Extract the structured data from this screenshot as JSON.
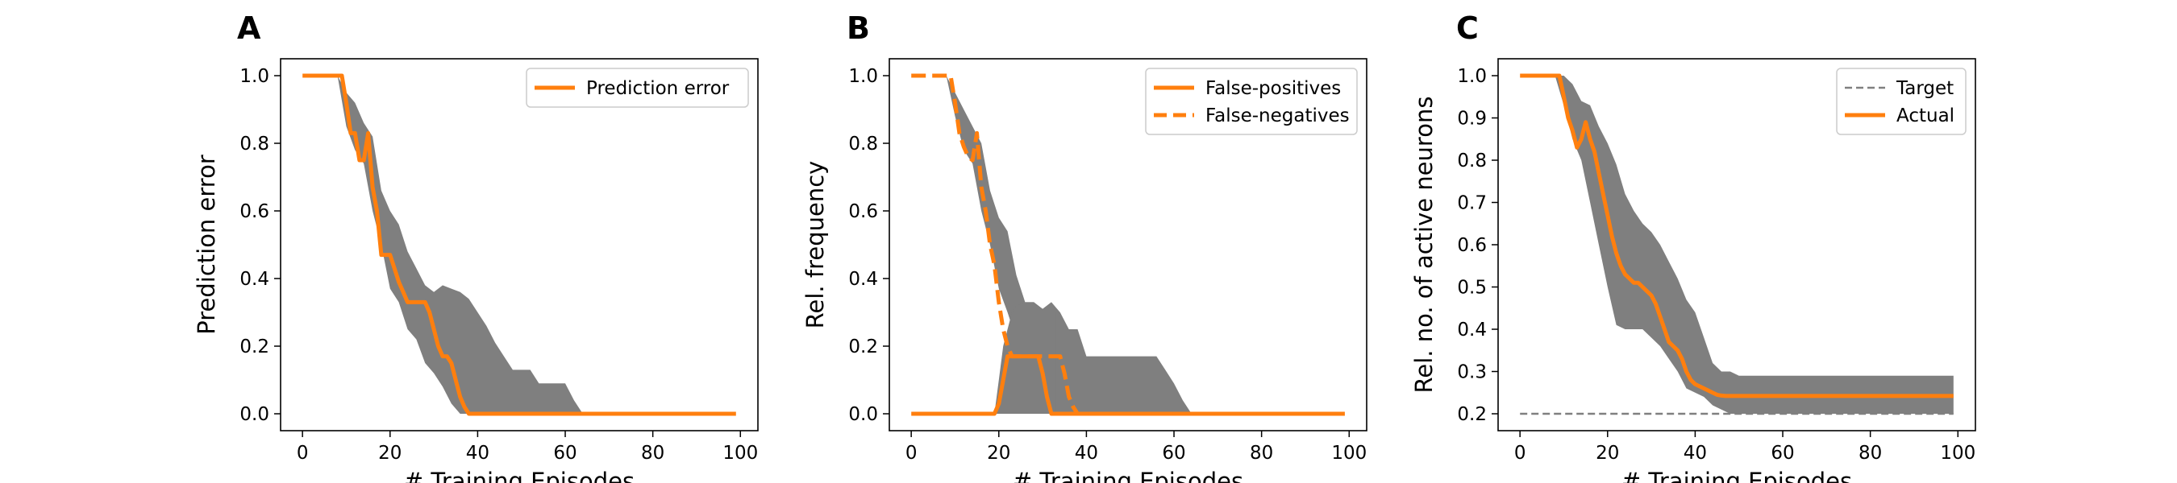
{
  "colors": {
    "actual": "#ff7f0e",
    "band": "#7f7f7f",
    "target": "#808080",
    "axes": "#000000"
  },
  "chart_data": [
    {
      "panel": "A",
      "type": "line",
      "title": "",
      "xlabel": "# Training Episodes",
      "ylabel": "Prediction error",
      "xlim": [
        -5,
        104
      ],
      "ylim": [
        -0.05,
        1.05
      ],
      "xticks": [
        0,
        20,
        40,
        60,
        80,
        100
      ],
      "yticks": [
        "0.0",
        "0.2",
        "0.4",
        "0.6",
        "0.8",
        "1.0"
      ],
      "grid": false,
      "legend_position": "top-right",
      "series": [
        {
          "name": "Prediction error",
          "style": "solid",
          "x": [
            0,
            8,
            9,
            10,
            11,
            12,
            13,
            14,
            15,
            16,
            17,
            18,
            19,
            20,
            21,
            22,
            23,
            24,
            25,
            26,
            27,
            28,
            29,
            30,
            31,
            32,
            33,
            34,
            35,
            36,
            37,
            38,
            39,
            40,
            50,
            60,
            70,
            80,
            90,
            99
          ],
          "y": [
            1.0,
            1.0,
            1.0,
            0.92,
            0.83,
            0.83,
            0.75,
            0.75,
            0.83,
            0.67,
            0.6,
            0.47,
            0.47,
            0.47,
            0.43,
            0.39,
            0.36,
            0.33,
            0.33,
            0.33,
            0.33,
            0.33,
            0.3,
            0.25,
            0.2,
            0.17,
            0.17,
            0.15,
            0.1,
            0.05,
            0.02,
            0.0,
            0.0,
            0.0,
            0.0,
            0.0,
            0.0,
            0.0,
            0.0,
            0.0
          ]
        }
      ],
      "bands": [
        {
          "x": [
            0,
            8,
            10,
            12,
            14,
            16,
            18,
            20,
            22,
            24,
            26,
            28,
            30,
            32,
            34,
            36,
            38,
            40,
            42,
            44,
            46,
            48,
            50,
            52,
            54,
            56,
            58,
            60,
            62,
            64,
            70,
            80,
            90,
            99
          ],
          "lower": [
            1.0,
            1.0,
            0.85,
            0.78,
            0.74,
            0.6,
            0.5,
            0.37,
            0.33,
            0.25,
            0.22,
            0.15,
            0.12,
            0.08,
            0.03,
            0.0,
            0.0,
            0.0,
            0.0,
            0.0,
            0.0,
            0.0,
            0.0,
            0.0,
            0.0,
            0.0,
            0.0,
            0.0,
            0.0,
            0.0,
            0.0,
            0.0,
            0.0,
            0.0
          ],
          "upper": [
            1.0,
            1.0,
            0.95,
            0.92,
            0.86,
            0.82,
            0.66,
            0.6,
            0.56,
            0.48,
            0.43,
            0.38,
            0.36,
            0.38,
            0.37,
            0.36,
            0.34,
            0.3,
            0.26,
            0.21,
            0.17,
            0.13,
            0.13,
            0.13,
            0.09,
            0.09,
            0.09,
            0.09,
            0.04,
            0.0,
            0.0,
            0.0,
            0.0,
            0.0
          ]
        }
      ]
    },
    {
      "panel": "B",
      "type": "line",
      "title": "",
      "xlabel": "# Training Episodes",
      "ylabel": "Rel. frequency",
      "xlim": [
        -5,
        104
      ],
      "ylim": [
        -0.05,
        1.05
      ],
      "xticks": [
        0,
        20,
        40,
        60,
        80,
        100
      ],
      "yticks": [
        "0.0",
        "0.2",
        "0.4",
        "0.6",
        "0.8",
        "1.0"
      ],
      "grid": false,
      "legend_position": "top-right",
      "series": [
        {
          "name": "False-positives",
          "style": "solid",
          "x": [
            0,
            19,
            20,
            21,
            22,
            23,
            24,
            25,
            26,
            27,
            28,
            29,
            30,
            31,
            32,
            33,
            40,
            50,
            60,
            70,
            80,
            90,
            99
          ],
          "y": [
            0.0,
            0.0,
            0.03,
            0.1,
            0.17,
            0.17,
            0.17,
            0.17,
            0.17,
            0.17,
            0.17,
            0.17,
            0.12,
            0.05,
            0.0,
            0.0,
            0.0,
            0.0,
            0.0,
            0.0,
            0.0,
            0.0,
            0.0
          ]
        },
        {
          "name": "False-negatives",
          "style": "dashed",
          "x": [
            0,
            8,
            9,
            10,
            11,
            12,
            13,
            14,
            15,
            16,
            17,
            18,
            19,
            20,
            21,
            22,
            23,
            24,
            25,
            26,
            27,
            28,
            29,
            30,
            31,
            32,
            33,
            34,
            35,
            36,
            37,
            38,
            40,
            50,
            60,
            70,
            80,
            90,
            99
          ],
          "y": [
            1.0,
            1.0,
            1.0,
            0.92,
            0.83,
            0.79,
            0.76,
            0.75,
            0.83,
            0.67,
            0.6,
            0.5,
            0.44,
            0.33,
            0.25,
            0.2,
            0.17,
            0.17,
            0.17,
            0.17,
            0.17,
            0.17,
            0.17,
            0.17,
            0.17,
            0.17,
            0.17,
            0.17,
            0.12,
            0.05,
            0.02,
            0.0,
            0.0,
            0.0,
            0.0,
            0.0,
            0.0,
            0.0,
            0.0
          ]
        }
      ],
      "bands": [
        {
          "x": [
            0,
            8,
            10,
            12,
            14,
            16,
            18,
            20,
            22,
            24,
            26,
            28,
            30,
            32,
            34,
            36,
            38,
            40,
            42,
            44,
            46,
            48,
            50,
            52,
            54,
            56,
            58,
            60,
            62,
            64,
            70,
            80,
            90,
            99
          ],
          "lower": [
            1.0,
            1.0,
            0.88,
            0.78,
            0.74,
            0.6,
            0.5,
            0.37,
            0.3,
            0.22,
            0.17,
            0.08,
            0.03,
            0.0,
            0.0,
            0.0,
            0.0,
            0.0,
            0.0,
            0.0,
            0.0,
            0.0,
            0.0,
            0.0,
            0.0,
            0.0,
            0.0,
            0.0,
            0.0,
            0.0,
            0.0,
            0.0,
            0.0,
            0.0
          ],
          "upper": [
            1.0,
            1.0,
            0.95,
            0.9,
            0.85,
            0.8,
            0.66,
            0.58,
            0.54,
            0.41,
            0.33,
            0.33,
            0.31,
            0.33,
            0.3,
            0.25,
            0.25,
            0.17,
            0.17,
            0.17,
            0.17,
            0.17,
            0.17,
            0.17,
            0.17,
            0.17,
            0.13,
            0.09,
            0.04,
            0.0,
            0.0,
            0.0,
            0.0,
            0.0
          ]
        },
        {
          "x": [
            19,
            20,
            21,
            22,
            23,
            24,
            26,
            28,
            30,
            32,
            33
          ],
          "lower": [
            0.0,
            0.0,
            0.0,
            0.0,
            0.0,
            0.0,
            0.0,
            0.0,
            0.0,
            0.0,
            0.0
          ],
          "upper": [
            0.0,
            0.1,
            0.2,
            0.25,
            0.3,
            0.32,
            0.33,
            0.33,
            0.31,
            0.33,
            0.3
          ]
        }
      ]
    },
    {
      "panel": "C",
      "type": "line",
      "title": "",
      "xlabel": "# Training Episodes",
      "ylabel": "Rel. no. of active neurons",
      "xlim": [
        -5,
        104
      ],
      "ylim": [
        0.16,
        1.04
      ],
      "xticks": [
        0,
        20,
        40,
        60,
        80,
        100
      ],
      "yticks": [
        "0.2",
        "0.3",
        "0.4",
        "0.5",
        "0.6",
        "0.7",
        "0.8",
        "0.9",
        "1.0"
      ],
      "grid": false,
      "legend_position": "top-right",
      "series": [
        {
          "name": "Target",
          "style": "dashed-thin",
          "x": [
            0,
            99
          ],
          "y": [
            0.2,
            0.2
          ]
        },
        {
          "name": "Actual",
          "style": "solid",
          "x": [
            0,
            8,
            9,
            10,
            11,
            12,
            13,
            14,
            15,
            16,
            17,
            18,
            19,
            20,
            21,
            22,
            23,
            24,
            25,
            26,
            27,
            28,
            29,
            30,
            31,
            32,
            33,
            34,
            35,
            36,
            37,
            38,
            39,
            40,
            41,
            42,
            43,
            44,
            45,
            46,
            47,
            48,
            50,
            60,
            70,
            80,
            90,
            99
          ],
          "y": [
            1.0,
            1.0,
            1.0,
            0.95,
            0.9,
            0.87,
            0.83,
            0.85,
            0.89,
            0.85,
            0.82,
            0.77,
            0.72,
            0.67,
            0.62,
            0.58,
            0.55,
            0.53,
            0.52,
            0.51,
            0.51,
            0.5,
            0.49,
            0.48,
            0.46,
            0.43,
            0.4,
            0.37,
            0.36,
            0.35,
            0.33,
            0.3,
            0.28,
            0.27,
            0.265,
            0.26,
            0.255,
            0.25,
            0.245,
            0.243,
            0.242,
            0.242,
            0.242,
            0.242,
            0.242,
            0.242,
            0.242,
            0.242
          ]
        }
      ],
      "bands": [
        {
          "x": [
            0,
            8,
            10,
            12,
            14,
            16,
            18,
            20,
            22,
            24,
            26,
            28,
            30,
            32,
            34,
            36,
            38,
            40,
            42,
            44,
            46,
            48,
            50,
            60,
            70,
            80,
            90,
            99
          ],
          "lower": [
            1.0,
            1.0,
            0.93,
            0.85,
            0.8,
            0.7,
            0.6,
            0.5,
            0.41,
            0.4,
            0.4,
            0.4,
            0.38,
            0.36,
            0.33,
            0.3,
            0.26,
            0.25,
            0.24,
            0.22,
            0.21,
            0.2,
            0.2,
            0.2,
            0.2,
            0.2,
            0.2,
            0.2
          ],
          "upper": [
            1.0,
            1.0,
            1.0,
            0.98,
            0.94,
            0.93,
            0.88,
            0.84,
            0.79,
            0.72,
            0.68,
            0.65,
            0.63,
            0.6,
            0.56,
            0.52,
            0.47,
            0.44,
            0.38,
            0.32,
            0.3,
            0.3,
            0.29,
            0.29,
            0.29,
            0.29,
            0.29,
            0.29
          ]
        }
      ]
    }
  ]
}
